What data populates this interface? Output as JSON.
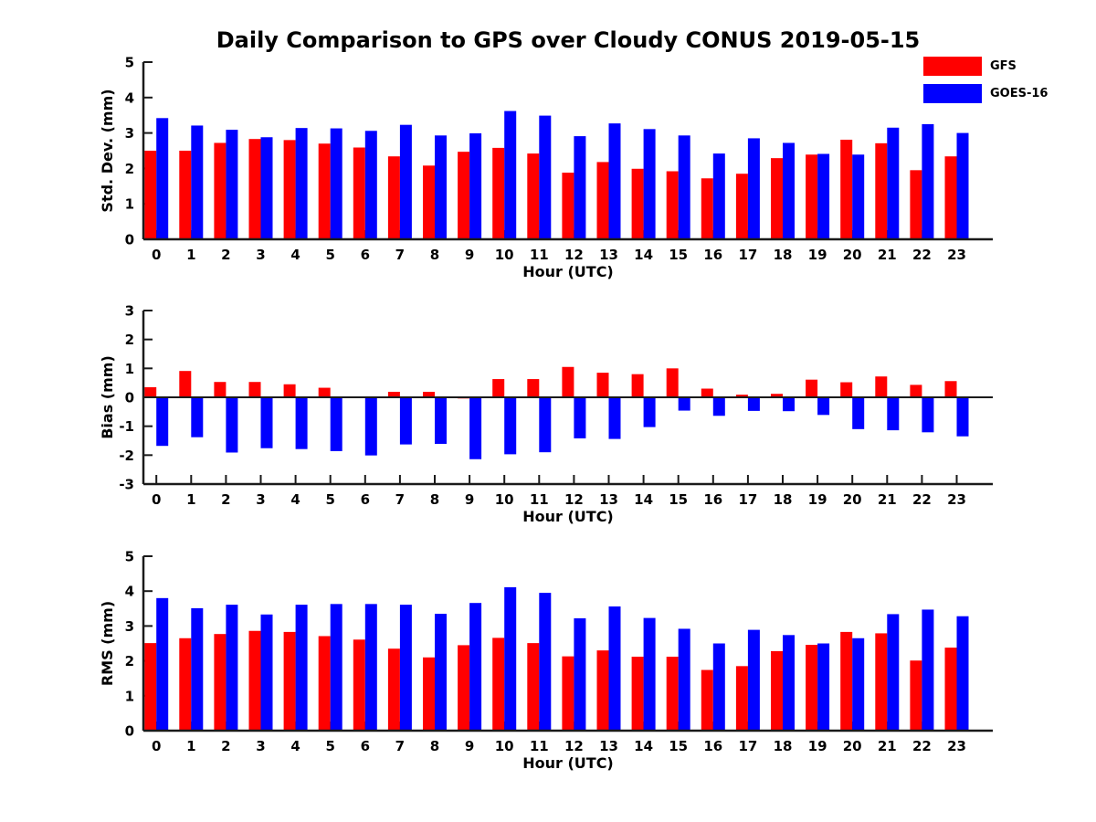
{
  "title": "Daily Comparison to GPS over Cloudy CONUS 2019-05-15",
  "colors": {
    "gfs": "#ff0000",
    "goes16": "#0000ff",
    "axis": "#1a1a1a",
    "text": "#000000"
  },
  "legend": {
    "items": [
      {
        "label": "GFS",
        "color": "#ff0000"
      },
      {
        "label": "GOES-16",
        "color": "#0000ff"
      }
    ]
  },
  "chart_data": [
    {
      "id": "std",
      "type": "bar",
      "title": "",
      "ylabel": "Std. Dev. (mm)",
      "xlabel": "Hour (UTC)",
      "ylim": [
        0,
        5
      ],
      "yticks": [
        0,
        1,
        2,
        3,
        4,
        5
      ],
      "grid": false,
      "legend_position": "top-right",
      "categories": [
        "0",
        "1",
        "2",
        "3",
        "4",
        "5",
        "6",
        "7",
        "8",
        "9",
        "10",
        "11",
        "12",
        "13",
        "14",
        "15",
        "16",
        "17",
        "18",
        "19",
        "20",
        "21",
        "22",
        "23"
      ],
      "series": [
        {
          "name": "GFS",
          "color": "#ff0000",
          "values": [
            2.5,
            2.5,
            2.72,
            2.83,
            2.8,
            2.7,
            2.59,
            2.34,
            2.08,
            2.47,
            2.58,
            2.42,
            1.88,
            2.18,
            1.99,
            1.92,
            1.72,
            1.85,
            2.29,
            2.39,
            2.81,
            2.71,
            1.95,
            2.34
          ]
        },
        {
          "name": "GOES-16",
          "color": "#0000ff",
          "values": [
            3.42,
            3.21,
            3.09,
            2.88,
            3.14,
            3.13,
            3.06,
            3.23,
            2.93,
            2.99,
            3.62,
            3.49,
            2.91,
            3.27,
            3.11,
            2.93,
            2.42,
            2.85,
            2.72,
            2.41,
            2.39,
            3.15,
            3.25,
            3.0
          ]
        }
      ]
    },
    {
      "id": "bias",
      "type": "bar",
      "title": "",
      "ylabel": "Bias (mm)",
      "xlabel": "Hour (UTC)",
      "ylim": [
        -3,
        3
      ],
      "yticks": [
        3,
        2,
        1,
        0,
        -1,
        -2,
        -3
      ],
      "grid": false,
      "zero_line": true,
      "categories": [
        "0",
        "1",
        "2",
        "3",
        "4",
        "5",
        "6",
        "7",
        "8",
        "9",
        "10",
        "11",
        "12",
        "13",
        "14",
        "15",
        "16",
        "17",
        "18",
        "19",
        "20",
        "21",
        "22",
        "23"
      ],
      "series": [
        {
          "name": "GFS",
          "color": "#ff0000",
          "values": [
            0.35,
            0.91,
            0.53,
            0.53,
            0.45,
            0.33,
            -0.03,
            0.19,
            0.19,
            -0.04,
            0.63,
            0.63,
            1.05,
            0.85,
            0.8,
            1.0,
            0.3,
            0.09,
            0.12,
            0.61,
            0.52,
            0.72,
            0.43,
            0.56
          ]
        },
        {
          "name": "GOES-16",
          "color": "#0000ff",
          "values": [
            -1.68,
            -1.38,
            -1.91,
            -1.76,
            -1.79,
            -1.86,
            -2.01,
            -1.63,
            -1.61,
            -2.14,
            -1.97,
            -1.9,
            -1.42,
            -1.44,
            -1.03,
            -0.46,
            -0.64,
            -0.47,
            -0.48,
            -0.61,
            -1.1,
            -1.14,
            -1.21,
            -1.35
          ]
        }
      ]
    },
    {
      "id": "rms",
      "type": "bar",
      "title": "",
      "ylabel": "RMS (mm)",
      "xlabel": "Hour (UTC)",
      "ylim": [
        0,
        5
      ],
      "yticks": [
        0,
        1,
        2,
        3,
        4,
        5
      ],
      "grid": false,
      "categories": [
        "0",
        "1",
        "2",
        "3",
        "4",
        "5",
        "6",
        "7",
        "8",
        "9",
        "10",
        "11",
        "12",
        "13",
        "14",
        "15",
        "16",
        "17",
        "18",
        "19",
        "20",
        "21",
        "22",
        "23"
      ],
      "series": [
        {
          "name": "GFS",
          "color": "#ff0000",
          "values": [
            2.51,
            2.65,
            2.77,
            2.86,
            2.83,
            2.71,
            2.61,
            2.35,
            2.1,
            2.45,
            2.66,
            2.51,
            2.13,
            2.3,
            2.12,
            2.12,
            1.74,
            1.85,
            2.28,
            2.46,
            2.83,
            2.79,
            2.01,
            2.38
          ]
        },
        {
          "name": "GOES-16",
          "color": "#0000ff",
          "values": [
            3.8,
            3.51,
            3.61,
            3.33,
            3.61,
            3.63,
            3.63,
            3.61,
            3.35,
            3.66,
            4.11,
            3.95,
            3.22,
            3.56,
            3.23,
            2.92,
            2.5,
            2.89,
            2.74,
            2.5,
            2.65,
            3.34,
            3.47,
            3.28
          ]
        }
      ]
    }
  ]
}
